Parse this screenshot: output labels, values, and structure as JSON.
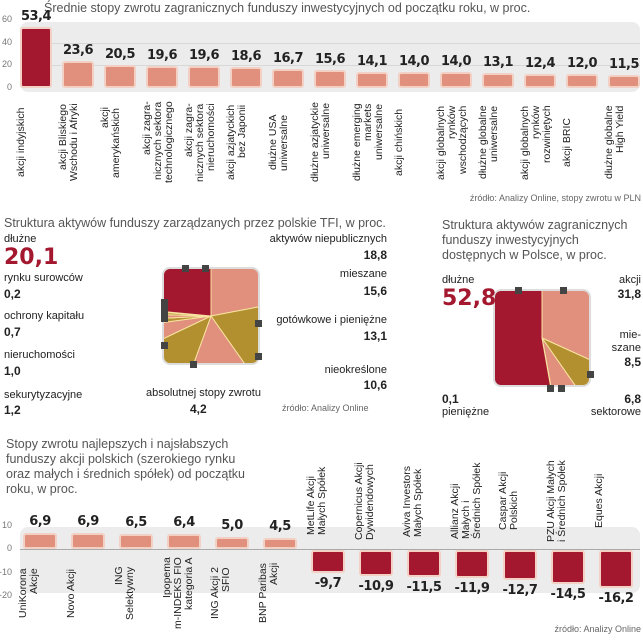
{
  "colors": {
    "dark_red": "#a3172f",
    "salmon": "#e0907c",
    "gold": "#b3902f",
    "band": "#ececec"
  },
  "chart_data": [
    {
      "type": "bar",
      "title": "Średnie stopy zwrotu zagranicznych funduszy inwestycyjnych od początku roku, w proc.",
      "yticks": [
        "60",
        "40",
        "20",
        "0"
      ],
      "ylim": [
        0,
        60
      ],
      "grid": true,
      "categories": [
        "akcji indyjskich",
        "akcji Bliskiego\nWschodu i Afryki",
        "akcji\namerykańskich",
        "akcji zagra-\nnicznych sektora\ntechnologicznego",
        "akcji zagra-\nnicznych sektora\nnieruchomości",
        "akcji azjatyckich\nbez Japonii",
        "dłużne USA\nuniwersalne",
        "dłużne azjatyckie\nuniwersalne",
        "dłużne emerging\nmarkets\nuniwersalne",
        "akcji chińskich",
        "akcji globalnych\nrynków\nwschodzących",
        "dłużne globalne\nuniwersalne",
        "akcji globalnych\nrynków\nrozwiniętych",
        "akcji BRIC",
        "dłużne globalne\nHigh Yield"
      ],
      "values": [
        53.4,
        23.6,
        20.5,
        19.6,
        19.6,
        18.6,
        16.7,
        15.6,
        14.1,
        14.0,
        14.0,
        13.1,
        12.4,
        12.0,
        11.5
      ],
      "labels": [
        "53,4",
        "23,6",
        "20,5",
        "19,6",
        "19,6",
        "18,6",
        "16,7",
        "15,6",
        "14,1",
        "14,0",
        "14,0",
        "13,1",
        "12,4",
        "12,0",
        "11,5"
      ],
      "source": "źródło: Analizy Online, stopy zwrotu w PLN"
    },
    {
      "type": "pie",
      "title": "Struktura aktywów funduszy zarządzanych przez polskie TFI, w proc.",
      "slices": [
        {
          "name": "aktywów niepublicznych",
          "value": 18.8,
          "label": "18,8",
          "color": "salmon"
        },
        {
          "name": "mieszane",
          "value": 15.6,
          "label": "15,6",
          "color": "gold"
        },
        {
          "name": "gotówkowe i pieniężne",
          "value": 13.1,
          "label": "13,1",
          "color": "salmon"
        },
        {
          "name": "nieokreślone",
          "value": 10.6,
          "label": "10,6",
          "color": "gold"
        },
        {
          "name": "absolutnej stopy zwrotu",
          "value": 4.2,
          "label": "4,2",
          "color": "salmon"
        },
        {
          "name": "sekurytyzacyjne",
          "value": 1.2,
          "label": "1,2",
          "color": "gold"
        },
        {
          "name": "nieruchomości",
          "value": 1.0,
          "label": "1,0",
          "color": "salmon"
        },
        {
          "name": "ochrony kapitału",
          "value": 0.7,
          "label": "0,7",
          "color": "gold"
        },
        {
          "name": "rynku surowców",
          "value": 0.2,
          "label": "0,2",
          "color": "salmon"
        },
        {
          "name": "dłużne",
          "value": 20.1,
          "label": "20,1",
          "color": "dark_red"
        }
      ],
      "source": "źródło: Analizy Online"
    },
    {
      "type": "pie",
      "title": "Struktura aktywów zagranicznych funduszy inwestycyjnych dostępnych w Polsce, w proc.",
      "slices": [
        {
          "name": "akcji",
          "value": 31.8,
          "label": "31,8",
          "color": "salmon"
        },
        {
          "name": "mie-\nszane",
          "value": 8.5,
          "label": "8,5",
          "color": "gold"
        },
        {
          "name": "sektorowe",
          "value": 6.8,
          "label": "6,8",
          "color": "salmon"
        },
        {
          "name": "pieniężne",
          "value": 0.1,
          "label": "0,1",
          "color": "salmon"
        },
        {
          "name": "dłużne",
          "value": 52.8,
          "label": "52,8",
          "color": "dark_red"
        }
      ]
    },
    {
      "type": "bar",
      "title": "Stopy zwrotu najlepszych i najsłabszych funduszy akcji polskich (szerokiego rynku oraz małych i średnich spółek) od początku roku, w proc.",
      "yticks": [
        "10",
        "0",
        "-10",
        "-20"
      ],
      "ylim": [
        -20,
        10
      ],
      "categories": [
        "UniKorona\nAkcje",
        "Novo Akcji",
        "ING\nSelektywny",
        "Ipopema\nm-INDEKS FIO\nkategoria A",
        "ING Akcji 2\nSFIO",
        "BNP Paribas\nAkcji",
        "MetLife Akcji\nMałych Spółek",
        "Copernicus Akcji\nDywidendowych",
        "Aviva Investors\nMałych Spółek",
        "Allianz Akcji\nMałych i\nŚrednich Spółek",
        "Caspar Akcji\nPolskich",
        "PZU Akcji Małych\ni Średnich Spółek",
        "Eques Akcji"
      ],
      "values": [
        6.9,
        6.9,
        6.5,
        6.4,
        5.0,
        4.5,
        -9.7,
        -10.9,
        -11.5,
        -11.9,
        -12.7,
        -14.5,
        -16.2
      ],
      "labels": [
        "6,9",
        "6,9",
        "6,5",
        "6,4",
        "5,0",
        "4,5",
        "-9,7",
        "-10,9",
        "-11,5",
        "-11,9",
        "-12,7",
        "-14,5",
        "-16,2"
      ],
      "source": "źródło: Analizy Online"
    }
  ]
}
